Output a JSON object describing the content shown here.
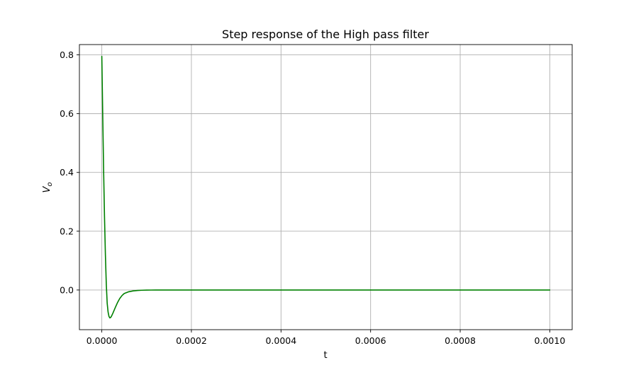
{
  "chart_data": {
    "type": "line",
    "title": "Step response of the High pass filter",
    "xlabel": "t",
    "ylabel": "V",
    "ylabel_sub": "o",
    "xlim": [
      -5e-05,
      0.00105
    ],
    "ylim": [
      -0.135,
      0.835
    ],
    "grid": true,
    "x_ticks": [
      0.0,
      0.0002,
      0.0004,
      0.0006,
      0.0008,
      0.001
    ],
    "x_tick_labels": [
      "0.0000",
      "0.0002",
      "0.0004",
      "0.0006",
      "0.0008",
      "0.0010"
    ],
    "y_ticks": [
      0.0,
      0.2,
      0.4,
      0.6,
      0.8
    ],
    "y_tick_labels": [
      "0.0",
      "0.2",
      "0.4",
      "0.6",
      "0.8"
    ],
    "series": [
      {
        "color": "#008000",
        "x": [
          0.0,
          2e-06,
          4e-06,
          6e-06,
          8e-06,
          1e-05,
          1.2e-05,
          1.4e-05,
          1.6e-05,
          1.8e-05,
          2e-05,
          2.2e-05,
          2.5e-05,
          3e-05,
          3.5e-05,
          4e-05,
          4.5e-05,
          5e-05,
          6e-05,
          7e-05,
          8e-05,
          9e-05,
          0.0001,
          0.00011,
          0.00012,
          0.00014,
          0.00016,
          0.0002,
          0.0003,
          0.0004,
          0.0005,
          0.0006,
          0.0007,
          0.0008,
          0.0009,
          0.001
        ],
        "y": [
          0.795,
          0.6,
          0.41,
          0.25,
          0.12,
          0.02,
          -0.045,
          -0.075,
          -0.09,
          -0.095,
          -0.093,
          -0.088,
          -0.078,
          -0.06,
          -0.043,
          -0.029,
          -0.019,
          -0.012,
          -0.006,
          -0.003,
          -0.0015,
          -0.0008,
          -0.0004,
          -0.0002,
          -0.0001,
          0.0,
          0.0,
          0.0,
          0.0,
          0.0,
          0.0,
          0.0,
          0.0,
          0.0,
          0.0,
          0.0
        ]
      }
    ]
  }
}
